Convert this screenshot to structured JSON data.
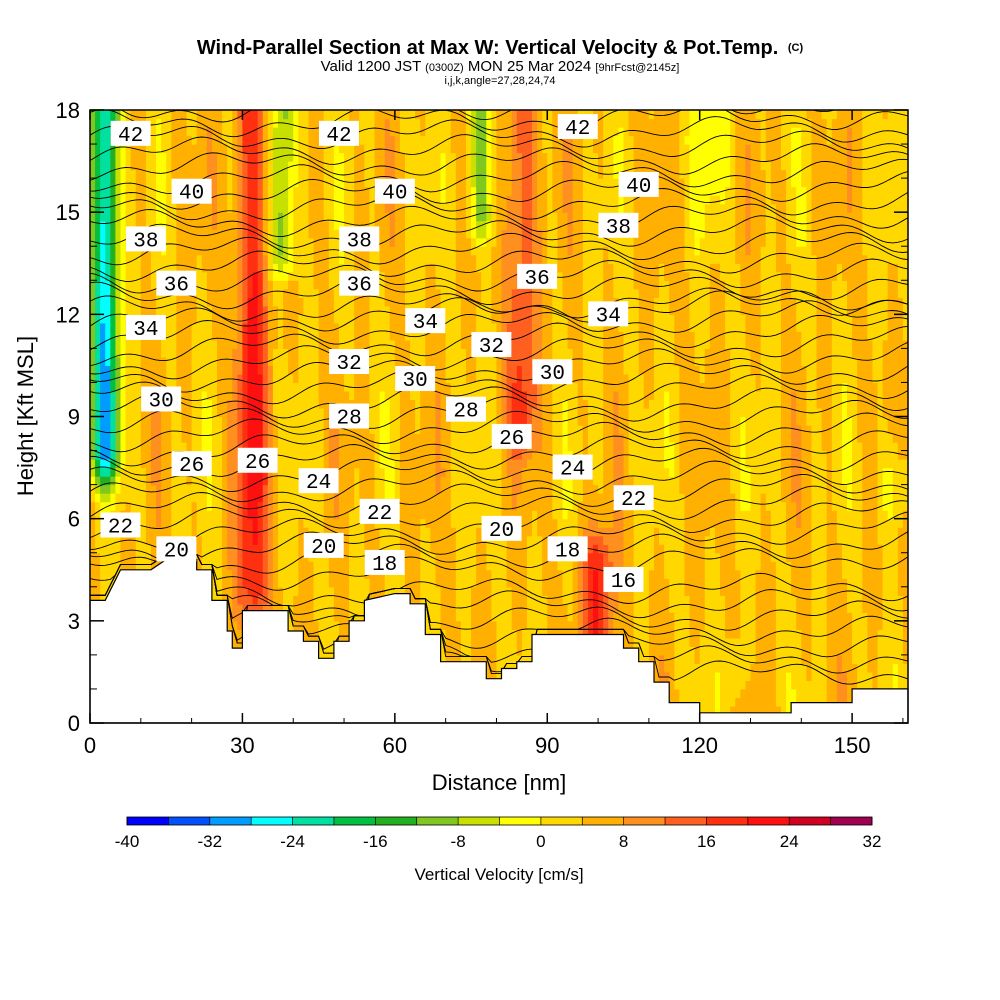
{
  "header": {
    "title": "Wind-Parallel Section at Max W: Vertical Velocity & Pot.Temp.",
    "copyright": "(C)",
    "valid_prefix": "Valid 1200 JST",
    "valid_utc": "(0300Z)",
    "valid_date": "MON 25 Mar 2024",
    "forecast": "[9hrFcst@2145z]",
    "indices": "i,j,k,angle=27,28,24,74"
  },
  "chart_data": {
    "type": "heatmap",
    "xlabel": "Distance [nm]",
    "ylabel": "Height [Kft MSL]",
    "xlim": [
      0,
      161
    ],
    "ylim": [
      0,
      18
    ],
    "x_ticks": [
      0,
      30,
      60,
      90,
      120,
      150
    ],
    "y_ticks": [
      0,
      3,
      6,
      9,
      12,
      15,
      18
    ],
    "colorbar": {
      "title": "Vertical Velocity [cm/s]",
      "min": -40,
      "max": 32,
      "step": 4,
      "tick_labels": [
        "-40",
        "-32",
        "-24",
        "-16",
        "-8",
        "0",
        "8",
        "16",
        "24",
        "32"
      ],
      "colors": [
        "#0000ff",
        "#0050ff",
        "#009cff",
        "#00ffff",
        "#00e0a0",
        "#00c040",
        "#20b020",
        "#80c820",
        "#c8e000",
        "#ffff00",
        "#ffd800",
        "#ffb000",
        "#ff9020",
        "#ff6020",
        "#ff3010",
        "#ff1010",
        "#d00020",
        "#a00050",
        "#801070"
      ]
    },
    "updraft_columns": [
      {
        "x": 32,
        "w_max": 20,
        "y_range": [
          4,
          18
        ]
      },
      {
        "x": 85,
        "w_max": 16,
        "y_range": [
          9,
          18
        ]
      },
      {
        "x": 100,
        "w_max": 20,
        "y_range": [
          2.5,
          4.5
        ]
      }
    ],
    "downdraft_columns": [
      {
        "x": 3,
        "w_min": -28,
        "y_range": [
          8,
          18
        ]
      },
      {
        "x": 38,
        "w_min": -12,
        "y_range": [
          14,
          18
        ]
      },
      {
        "x": 77,
        "w_min": -10,
        "y_range": [
          15,
          18
        ]
      }
    ],
    "terrain_height_kft": [
      [
        0,
        3.6
      ],
      [
        3,
        3.6
      ],
      [
        6,
        4.5
      ],
      [
        12,
        4.5
      ],
      [
        15,
        4.8
      ],
      [
        21,
        4.8
      ],
      [
        21,
        4.5
      ],
      [
        24,
        4.5
      ],
      [
        24,
        3.6
      ],
      [
        27,
        3.6
      ],
      [
        27,
        3.0
      ],
      [
        27,
        2.7
      ],
      [
        28,
        2.7
      ],
      [
        28,
        2.2
      ],
      [
        30,
        2.2
      ],
      [
        30,
        3.3
      ],
      [
        39,
        3.3
      ],
      [
        39,
        2.7
      ],
      [
        42,
        2.7
      ],
      [
        42,
        2.4
      ],
      [
        45,
        2.4
      ],
      [
        45,
        1.9
      ],
      [
        48,
        1.9
      ],
      [
        48,
        2.4
      ],
      [
        51,
        2.4
      ],
      [
        51,
        2.7
      ],
      [
        51,
        3.0
      ],
      [
        54,
        3.0
      ],
      [
        54,
        3.6
      ],
      [
        60,
        3.8
      ],
      [
        63,
        3.8
      ],
      [
        63,
        3.5
      ],
      [
        66,
        3.5
      ],
      [
        66,
        2.6
      ],
      [
        69,
        2.6
      ],
      [
        69,
        1.8
      ],
      [
        72,
        1.8
      ],
      [
        72,
        1.8
      ],
      [
        75,
        1.8
      ],
      [
        75,
        1.8
      ],
      [
        78,
        1.8
      ],
      [
        78,
        1.3
      ],
      [
        81,
        1.3
      ],
      [
        81,
        1.6
      ],
      [
        84,
        1.6
      ],
      [
        84,
        1.8
      ],
      [
        87,
        1.8
      ],
      [
        87,
        2.6
      ],
      [
        96,
        2.6
      ],
      [
        102,
        2.6
      ],
      [
        105,
        2.6
      ],
      [
        105,
        2.2
      ],
      [
        108,
        2.2
      ],
      [
        108,
        1.8
      ],
      [
        111,
        1.8
      ],
      [
        111,
        1.2
      ],
      [
        114,
        1.2
      ],
      [
        114,
        0.6
      ],
      [
        117,
        0.6
      ],
      [
        117,
        0.6
      ],
      [
        120,
        0.6
      ],
      [
        120,
        0.3
      ],
      [
        132,
        0.3
      ],
      [
        138,
        0.3
      ],
      [
        138,
        0.6
      ],
      [
        150,
        0.6
      ],
      [
        150,
        1.0
      ],
      [
        161,
        1.0
      ]
    ],
    "isentropes_K_offset": [
      16,
      18,
      20,
      22,
      24,
      26,
      28,
      30,
      32,
      34,
      36,
      38,
      40,
      42
    ],
    "contour_labels": [
      {
        "text": "42",
        "x": 8,
        "y": 17.3
      },
      {
        "text": "42",
        "x": 49,
        "y": 17.3
      },
      {
        "text": "42",
        "x": 96,
        "y": 17.5
      },
      {
        "text": "40",
        "x": 20,
        "y": 15.6
      },
      {
        "text": "40",
        "x": 60,
        "y": 15.6
      },
      {
        "text": "40",
        "x": 108,
        "y": 15.8
      },
      {
        "text": "38",
        "x": 11,
        "y": 14.2
      },
      {
        "text": "38",
        "x": 53,
        "y": 14.2
      },
      {
        "text": "38",
        "x": 104,
        "y": 14.6
      },
      {
        "text": "36",
        "x": 17,
        "y": 12.9
      },
      {
        "text": "36",
        "x": 53,
        "y": 12.9
      },
      {
        "text": "36",
        "x": 88,
        "y": 13.1
      },
      {
        "text": "34",
        "x": 11,
        "y": 11.6
      },
      {
        "text": "34",
        "x": 66,
        "y": 11.8
      },
      {
        "text": "34",
        "x": 102,
        "y": 12.0
      },
      {
        "text": "32",
        "x": 51,
        "y": 10.6
      },
      {
        "text": "32",
        "x": 79,
        "y": 11.1
      },
      {
        "text": "30",
        "x": 14,
        "y": 9.5
      },
      {
        "text": "30",
        "x": 64,
        "y": 10.1
      },
      {
        "text": "30",
        "x": 91,
        "y": 10.3
      },
      {
        "text": "28",
        "x": 51,
        "y": 9.0
      },
      {
        "text": "28",
        "x": 74,
        "y": 9.2
      },
      {
        "text": "26",
        "x": 20,
        "y": 7.6
      },
      {
        "text": "26",
        "x": 33,
        "y": 7.7
      },
      {
        "text": "26",
        "x": 83,
        "y": 8.4
      },
      {
        "text": "24",
        "x": 45,
        "y": 7.1
      },
      {
        "text": "24",
        "x": 95,
        "y": 7.5
      },
      {
        "text": "22",
        "x": 6,
        "y": 5.8
      },
      {
        "text": "22",
        "x": 57,
        "y": 6.2
      },
      {
        "text": "22",
        "x": 107,
        "y": 6.6
      },
      {
        "text": "20",
        "x": 17,
        "y": 5.1
      },
      {
        "text": "20",
        "x": 46,
        "y": 5.2
      },
      {
        "text": "20",
        "x": 81,
        "y": 5.7
      },
      {
        "text": "18",
        "x": 58,
        "y": 4.7
      },
      {
        "text": "18",
        "x": 94,
        "y": 5.1
      },
      {
        "text": "16",
        "x": 105,
        "y": 4.2
      }
    ]
  }
}
